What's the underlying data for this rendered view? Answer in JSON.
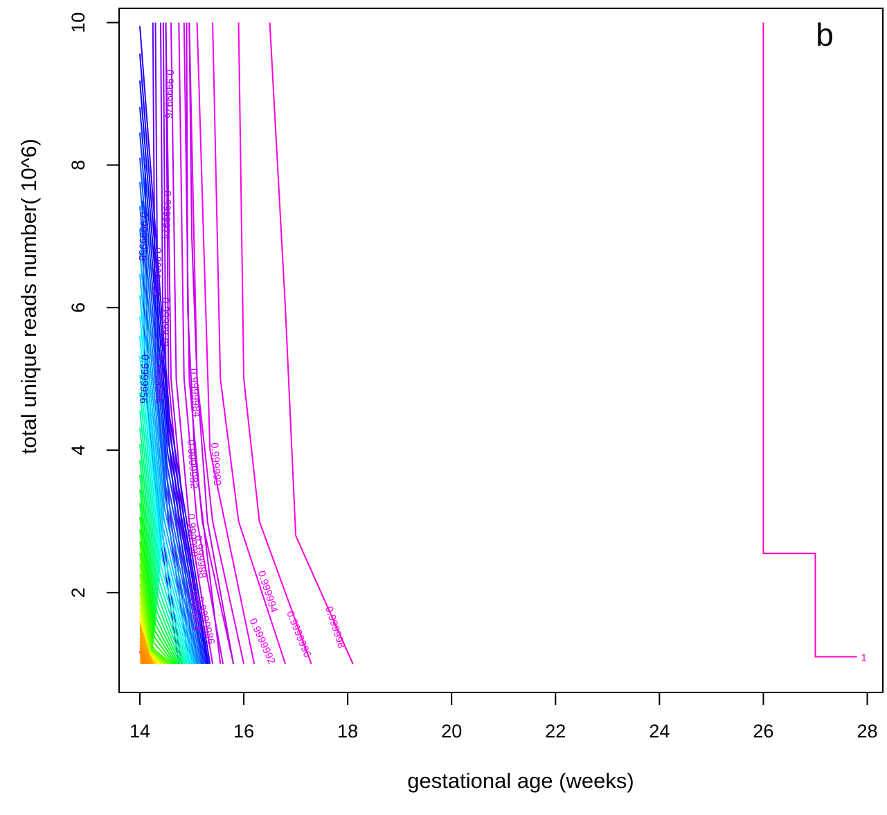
{
  "chart_data": {
    "type": "contour",
    "panel_letter": "b",
    "xlabel": "gestational age (weeks)",
    "ylabel": "total unique reads number( 10^6)",
    "xlim": [
      13.6,
      28.3
    ],
    "ylim": [
      0.6,
      10.2
    ],
    "x_ticks": [
      14,
      16,
      18,
      20,
      22,
      24,
      26,
      28
    ],
    "y_ticks": [
      2,
      4,
      6,
      8,
      10
    ],
    "grid": false,
    "legend": "none",
    "labelled_levels": [
      {
        "label": "0.999998",
        "color": "#ff00d8",
        "points": [
          [
            16.5,
            10
          ],
          [
            16.8,
            6
          ],
          [
            17.0,
            2.8
          ],
          [
            18.1,
            1
          ]
        ],
        "label_at": [
          17.7,
          1.5
        ],
        "label_angle": 72
      },
      {
        "label": "0.9999996",
        "color": "#ff00e6",
        "points": [
          [
            15.9,
            10
          ],
          [
            16.0,
            5
          ],
          [
            16.3,
            3.0
          ],
          [
            17.3,
            1
          ]
        ],
        "label_at": [
          17.0,
          1.4
        ],
        "label_angle": 68
      },
      {
        "label": "0.999994",
        "color": "#f000f2",
        "points": [
          [
            15.4,
            10
          ],
          [
            15.55,
            5
          ],
          [
            15.9,
            3.0
          ],
          [
            16.8,
            1
          ]
        ],
        "label_at": [
          16.4,
          2.0
        ],
        "label_angle": 72
      },
      {
        "label": "0.9999992",
        "color": "#f000f2",
        "points": [
          [
            15.1,
            10
          ],
          [
            15.35,
            4
          ],
          [
            16.2,
            1
          ]
        ],
        "label_at": [
          16.3,
          1.3
        ],
        "label_angle": 66
      },
      {
        "label": "0.999999",
        "color": "#e000f0",
        "points": [
          [
            14.95,
            10
          ],
          [
            15.1,
            5
          ],
          [
            15.4,
            3
          ],
          [
            16.0,
            1
          ]
        ],
        "label_at": [
          15.4,
          3.8
        ],
        "label_angle": 86
      },
      {
        "label": "0.999988",
        "color": "#d800f0",
        "points": [
          [
            14.85,
            10
          ],
          [
            14.95,
            5
          ],
          [
            15.2,
            3
          ],
          [
            15.8,
            1
          ]
        ],
        "label_at": [
          15.1,
          2.5
        ],
        "label_angle": 84
      },
      {
        "label": "0.9999986",
        "color": "#d000f0",
        "points": [
          [
            14.75,
            10
          ],
          [
            14.85,
            5
          ],
          [
            15.1,
            3
          ],
          [
            15.6,
            1
          ]
        ],
        "label_at": [
          15.2,
          1.6
        ],
        "label_angle": 76
      },
      {
        "label": "0.999998",
        "color": "#c000f0",
        "points": [
          [
            14.6,
            10
          ],
          [
            14.7,
            5
          ],
          [
            14.95,
            3
          ],
          [
            15.4,
            1
          ]
        ],
        "label_at": [
          14.95,
          2.8
        ],
        "label_angle": 86
      },
      {
        "label": "0.9999978",
        "color": "#b400f0",
        "points": [
          [
            14.5,
            10
          ],
          [
            14.6,
            5
          ],
          [
            14.85,
            3
          ],
          [
            15.3,
            1
          ]
        ],
        "label_at": [
          15.0,
          1.8
        ],
        "label_angle": 84
      },
      {
        "label": "0.9999984",
        "color": "#c000f0",
        "points": [
          [
            14.95,
            10
          ],
          [
            15.0,
            7
          ],
          [
            15.1,
            5
          ],
          [
            15.3,
            3
          ],
          [
            15.8,
            1
          ]
        ],
        "label_at": [
          15.0,
          4.8
        ],
        "label_angle": 86
      },
      {
        "label": "0.9999982",
        "color": "#b800f0",
        "points": [
          [
            14.9,
            10
          ],
          [
            14.92,
            6
          ],
          [
            15.05,
            4
          ],
          [
            15.55,
            1
          ]
        ],
        "label_at": [
          14.95,
          3.8
        ],
        "label_angle": 86
      },
      {
        "label": "0.9999976",
        "color": "#9c00f0",
        "points": [
          [
            14.5,
            10
          ],
          [
            14.55,
            5
          ],
          [
            14.8,
            3
          ],
          [
            15.2,
            1
          ]
        ],
        "label_at": [
          14.5,
          9.0
        ],
        "label_angle": 92
      },
      {
        "label": "0.9999974",
        "color": "#9000f0",
        "points": [
          [
            14.45,
            10
          ],
          [
            14.5,
            5
          ],
          [
            14.75,
            3
          ],
          [
            15.1,
            1
          ]
        ],
        "label_at": [
          14.45,
          7.3
        ],
        "label_angle": 92
      },
      {
        "label": "0.9999972",
        "color": "#8400f0",
        "points": [
          [
            14.4,
            10
          ],
          [
            14.45,
            5
          ],
          [
            14.7,
            3
          ],
          [
            15.05,
            1
          ]
        ],
        "label_at": [
          14.42,
          5.8
        ],
        "label_angle": 92
      },
      {
        "label": "0.9999968",
        "color": "#7000f0",
        "points": [
          [
            14.3,
            10
          ],
          [
            14.35,
            5
          ],
          [
            14.6,
            3
          ],
          [
            15.0,
            1
          ]
        ],
        "label_at": [
          14.32,
          5.0
        ],
        "label_angle": 92
      },
      {
        "label": "0.9999966",
        "color": "#6000f0",
        "points": [
          [
            14.25,
            10
          ],
          [
            14.3,
            5
          ],
          [
            14.55,
            3
          ],
          [
            14.95,
            1
          ]
        ],
        "label_at": [
          14.26,
          6.5
        ],
        "label_angle": 92
      },
      {
        "label": "0.9999958",
        "color": "#3000f0",
        "points": [
          [
            14.1,
            8
          ],
          [
            14.15,
            5
          ],
          [
            14.4,
            3
          ],
          [
            14.8,
            1
          ]
        ],
        "label_at": [
          14.0,
          7.0
        ],
        "label_angle": 92
      },
      {
        "label": "0.9999956",
        "color": "#2800f0",
        "points": [
          [
            14.05,
            7.5
          ],
          [
            14.1,
            5
          ],
          [
            14.35,
            3
          ],
          [
            14.75,
            1
          ]
        ],
        "label_at": [
          14.02,
          5.0
        ],
        "label_angle": 92
      },
      {
        "label": "1",
        "color": "#ff00c0",
        "points": [
          [
            26.0,
            10
          ],
          [
            26.0,
            2.55
          ],
          [
            27.0,
            2.55
          ],
          [
            27.0,
            1.1
          ],
          [
            27.8,
            1.1
          ]
        ],
        "label_at": [
          27.8,
          1.1
        ],
        "label_angle": 0
      }
    ]
  }
}
